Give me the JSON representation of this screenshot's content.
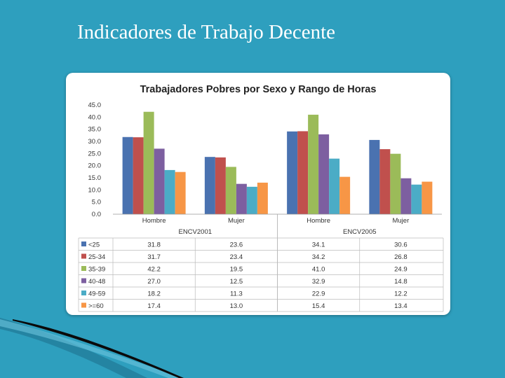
{
  "slide": {
    "title": "Indicadores de Trabajo Decente"
  },
  "chart_data": {
    "type": "bar",
    "title": "Trabajadores Pobres  por Sexo y Rango de Horas",
    "groups": [
      "ENCV2001",
      "ENCV2005"
    ],
    "categories": [
      "Hombre",
      "Mujer",
      "Hombre",
      "Mujer"
    ],
    "ylim": [
      0,
      45
    ],
    "yticks": [
      "45.0",
      "40.0",
      "35.0",
      "30.0",
      "25.0",
      "20.0",
      "15.0",
      "10.0",
      "5.0",
      "0.0"
    ],
    "legend_position": "table-below",
    "series": [
      {
        "name": "<25",
        "color": "#4a72b0",
        "values": [
          31.8,
          23.6,
          34.1,
          30.6
        ],
        "labels": [
          "31.8",
          "23.6",
          "34.1",
          "30.6"
        ]
      },
      {
        "name": "25-34",
        "color": "#c0504d",
        "values": [
          31.7,
          23.4,
          34.2,
          26.8
        ],
        "labels": [
          "31.7",
          "23.4",
          "34.2",
          "26.8"
        ]
      },
      {
        "name": "35-39",
        "color": "#9bbb59",
        "values": [
          42.2,
          19.5,
          41.0,
          24.9
        ],
        "labels": [
          "42.2",
          "19.5",
          "41.0",
          "24.9"
        ]
      },
      {
        "name": "40-48",
        "color": "#7d5fa0",
        "values": [
          27.0,
          12.5,
          32.9,
          14.8
        ],
        "labels": [
          "27.0",
          "12.5",
          "32.9",
          "14.8"
        ]
      },
      {
        "name": "49-59",
        "color": "#4bacc6",
        "values": [
          18.2,
          11.3,
          22.9,
          12.2
        ],
        "labels": [
          "18.2",
          "11.3",
          "22.9",
          "12.2"
        ]
      },
      {
        "name": ">=60",
        "color": "#f79646",
        "values": [
          17.4,
          13.0,
          15.4,
          13.4
        ],
        "labels": [
          "17.4",
          "13.0",
          "15.4",
          "13.4"
        ]
      }
    ]
  }
}
